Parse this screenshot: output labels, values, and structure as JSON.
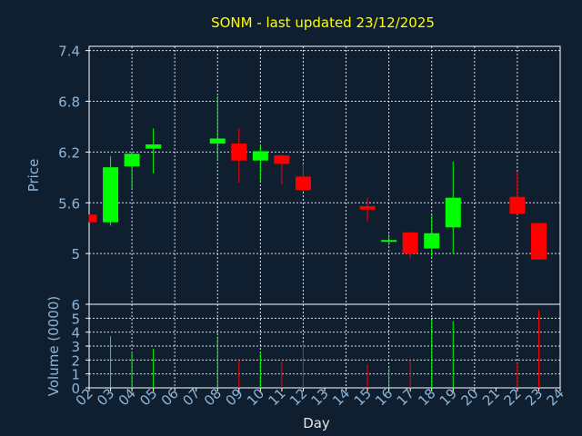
{
  "chart_data": [
    {
      "type": "candlestick",
      "title": "SONM - last updated 23/12/2025",
      "ylabel": "Price",
      "ylim": [
        4.4,
        7.45
      ],
      "yticks": [
        5,
        5.6,
        6.2,
        6.8,
        7.4
      ],
      "ytick_labels": [
        "5",
        "5.6",
        "6.2",
        "6.8",
        "7.4"
      ],
      "grid": true,
      "colors": {
        "up": "#00ff00",
        "down": "#ff0000",
        "title": "#ffff00",
        "axis_text": "#8fb4d6",
        "grid": "#ffffff",
        "background": "#0f1f30"
      },
      "x": [
        2,
        3,
        4,
        5,
        8,
        9,
        10,
        11,
        12,
        15,
        16,
        17,
        18,
        19,
        22,
        23
      ],
      "candles": [
        {
          "day": 2,
          "open": 5.46,
          "close": 5.37,
          "high": 5.46,
          "low": 5.37
        },
        {
          "day": 3,
          "open": 5.37,
          "close": 6.02,
          "high": 6.15,
          "low": 5.33
        },
        {
          "day": 4,
          "open": 6.03,
          "close": 6.18,
          "high": 6.2,
          "low": 5.77
        },
        {
          "day": 5,
          "open": 6.24,
          "close": 6.29,
          "high": 6.48,
          "low": 5.95
        },
        {
          "day": 8,
          "open": 6.3,
          "close": 6.36,
          "high": 6.86,
          "low": 6.1
        },
        {
          "day": 9,
          "open": 6.3,
          "close": 6.1,
          "high": 6.48,
          "low": 5.84
        },
        {
          "day": 10,
          "open": 6.1,
          "close": 6.21,
          "high": 6.29,
          "low": 5.86
        },
        {
          "day": 11,
          "open": 6.16,
          "close": 6.06,
          "high": 6.17,
          "low": 5.82
        },
        {
          "day": 12,
          "open": 5.91,
          "close": 5.75,
          "high": 6.06,
          "low": 5.73
        },
        {
          "day": 15,
          "open": 5.56,
          "close": 5.52,
          "high": 5.66,
          "low": 5.38
        },
        {
          "day": 16,
          "open": 5.14,
          "close": 5.16,
          "high": 5.23,
          "low": 5.1
        },
        {
          "day": 17,
          "open": 5.25,
          "close": 5.0,
          "high": 5.25,
          "low": 4.94
        },
        {
          "day": 18,
          "open": 5.06,
          "close": 5.24,
          "high": 5.45,
          "low": 4.96
        },
        {
          "day": 19,
          "open": 5.31,
          "close": 5.66,
          "high": 6.09,
          "low": 5.0
        },
        {
          "day": 22,
          "open": 5.67,
          "close": 5.47,
          "high": 5.97,
          "low": 5.46
        },
        {
          "day": 23,
          "open": 5.36,
          "close": 4.93,
          "high": 5.36,
          "low": 4.93
        }
      ]
    },
    {
      "type": "bar",
      "ylabel": "Volume (0000)",
      "xlabel": "Day",
      "ylim": [
        0,
        6
      ],
      "yticks": [
        0,
        1,
        2,
        3,
        4,
        5,
        6
      ],
      "ytick_labels": [
        "0",
        "1",
        "2",
        "3",
        "4",
        "5",
        "6"
      ],
      "xlim": [
        2,
        24
      ],
      "xticks": [
        2,
        3,
        4,
        5,
        6,
        7,
        8,
        9,
        10,
        11,
        12,
        13,
        14,
        15,
        16,
        17,
        18,
        19,
        20,
        21,
        22,
        23,
        24
      ],
      "xtick_labels": [
        "02",
        "03",
        "04",
        "05",
        "06",
        "07",
        "08",
        "09",
        "10",
        "11",
        "12",
        "13",
        "14",
        "15",
        "16",
        "17",
        "18",
        "19",
        "20",
        "21",
        "22",
        "23",
        "24"
      ],
      "x": [
        3,
        4,
        5,
        8,
        9,
        10,
        11,
        12,
        15,
        16,
        17,
        18,
        19,
        22,
        23
      ],
      "values": [
        3.7,
        2.6,
        2.8,
        3.7,
        2.0,
        2.6,
        1.9,
        3.2,
        1.7,
        1.4,
        2.0,
        4.9,
        4.8,
        1.8,
        5.6
      ],
      "up": [
        true,
        true,
        true,
        true,
        false,
        true,
        false,
        false,
        false,
        true,
        false,
        true,
        true,
        false,
        false
      ]
    }
  ]
}
